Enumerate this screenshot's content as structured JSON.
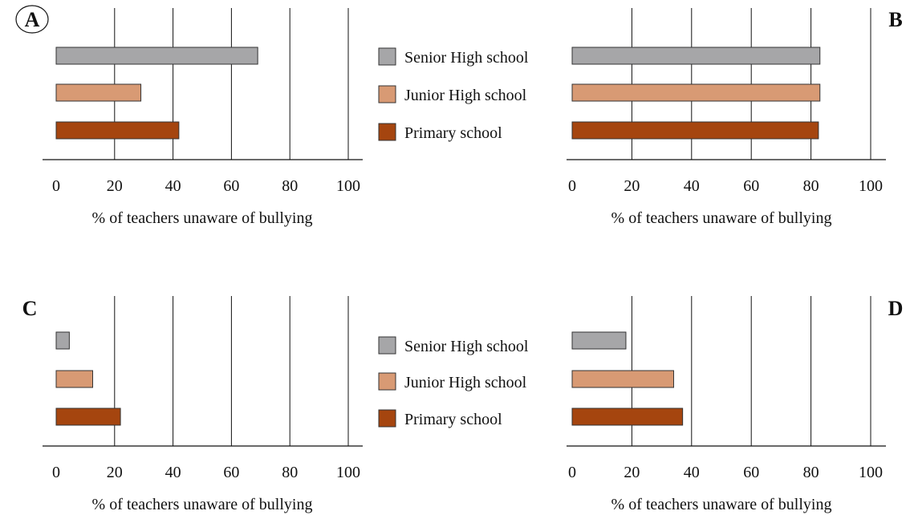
{
  "colors": {
    "Senior High school": "#a6a6a8",
    "Junior High school": "#d89a74",
    "Primary school": "#a5450f",
    "axis": "#111111"
  },
  "legend": [
    "Senior High school",
    "Junior High school",
    "Primary school"
  ],
  "chart_data": [
    {
      "type": "bar",
      "panel": "A",
      "label_circled": true,
      "orientation": "horizontal",
      "categories": [
        "Senior High school",
        "Junior High school",
        "Primary school"
      ],
      "values": [
        69,
        29,
        42
      ],
      "xlabel": "% of teachers unaware of bullying",
      "xlim": [
        0,
        100
      ],
      "xticks": [
        0,
        20,
        40,
        60,
        80,
        100
      ],
      "grid": true
    },
    {
      "type": "bar",
      "panel": "B",
      "label_circled": false,
      "orientation": "horizontal",
      "categories": [
        "Senior High school",
        "Junior High school",
        "Primary school"
      ],
      "values": [
        83,
        83,
        82.5
      ],
      "xlabel": "% of teachers unaware of bullying",
      "xlim": [
        0,
        100
      ],
      "xticks": [
        0,
        20,
        40,
        60,
        80,
        100
      ],
      "grid": true
    },
    {
      "type": "bar",
      "panel": "C",
      "label_circled": false,
      "orientation": "horizontal",
      "categories": [
        "Senior High school",
        "Junior High school",
        "Primary school"
      ],
      "values": [
        4.5,
        12.5,
        22
      ],
      "xlabel": "% of teachers unaware of bullying",
      "xlim": [
        0,
        100
      ],
      "xticks": [
        0,
        20,
        40,
        60,
        80,
        100
      ],
      "grid": true
    },
    {
      "type": "bar",
      "panel": "D",
      "label_circled": false,
      "orientation": "horizontal",
      "categories": [
        "Senior High school",
        "Junior High school",
        "Primary school"
      ],
      "values": [
        18,
        34,
        37
      ],
      "xlabel": "% of teachers unaware of bullying",
      "xlim": [
        0,
        100
      ],
      "xticks": [
        0,
        20,
        40,
        60,
        80,
        100
      ],
      "grid": true
    }
  ]
}
